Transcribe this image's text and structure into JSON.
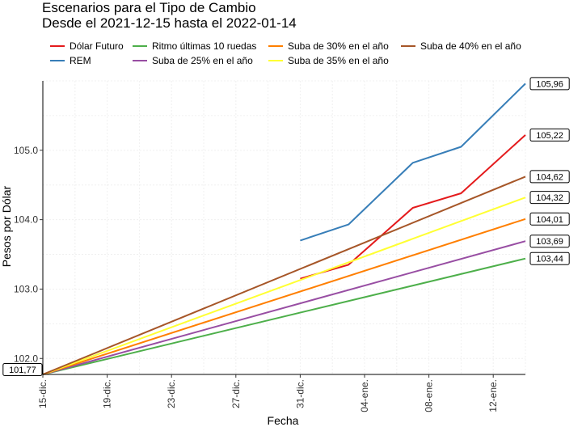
{
  "chart_data": {
    "type": "line",
    "title": "Escenarios para el Tipo de Cambio",
    "subtitle": "Desde el 2021-12-15 hasta el 2022-01-14",
    "xlabel": "Fecha",
    "ylabel": "Pesos por Dólar",
    "x_range": [
      "2021-12-15",
      "2022-01-14"
    ],
    "ylim": [
      101.77,
      106.0
    ],
    "x_ticks": [
      "15-dic.",
      "19-dic.",
      "23-dic.",
      "27-dic.",
      "31-dic.",
      "04-ene.",
      "08-ene.",
      "12-ene."
    ],
    "y_ticks": [
      "102.0",
      "103.0",
      "104.0",
      "105.0"
    ],
    "y_tick_values": [
      102.0,
      103.0,
      104.0,
      105.0
    ],
    "grid": true,
    "legend_position": "top",
    "start_label": "101,77",
    "series": [
      {
        "name": "Dólar Futuro",
        "color": "#e41a1c",
        "end_label": "105,22",
        "points": [
          [
            "2021-12-31",
            103.15
          ],
          [
            "2022-01-03",
            103.35
          ],
          [
            "2022-01-07",
            104.17
          ],
          [
            "2022-01-10",
            104.38
          ],
          [
            "2022-01-14",
            105.22
          ]
        ]
      },
      {
        "name": "REM",
        "color": "#377eb8",
        "end_label": "105,96",
        "points": [
          [
            "2021-12-31",
            103.7
          ],
          [
            "2022-01-03",
            103.93
          ],
          [
            "2022-01-07",
            104.82
          ],
          [
            "2022-01-10",
            105.05
          ],
          [
            "2022-01-14",
            105.96
          ]
        ]
      },
      {
        "name": "Ritmo últimas 10 ruedas",
        "color": "#4daf4a",
        "end_label": "103,44",
        "points": [
          [
            "2021-12-15",
            101.77
          ],
          [
            "2022-01-14",
            103.44
          ]
        ]
      },
      {
        "name": "Suba de 25% en el año",
        "color": "#984ea3",
        "end_label": "103,69",
        "points": [
          [
            "2021-12-15",
            101.77
          ],
          [
            "2022-01-14",
            103.69
          ]
        ]
      },
      {
        "name": "Suba de 30% en el año",
        "color": "#ff7f00",
        "end_label": "104,01",
        "points": [
          [
            "2021-12-15",
            101.77
          ],
          [
            "2022-01-14",
            104.01
          ]
        ]
      },
      {
        "name": "Suba de 35% en el año",
        "color": "#ffff33",
        "end_label": "104,32",
        "points": [
          [
            "2021-12-15",
            101.77
          ],
          [
            "2022-01-14",
            104.32
          ]
        ]
      },
      {
        "name": "Suba de 40% en el año",
        "color": "#a65628",
        "end_label": "104,62",
        "points": [
          [
            "2021-12-15",
            101.77
          ],
          [
            "2022-01-14",
            104.62
          ]
        ]
      }
    ]
  }
}
